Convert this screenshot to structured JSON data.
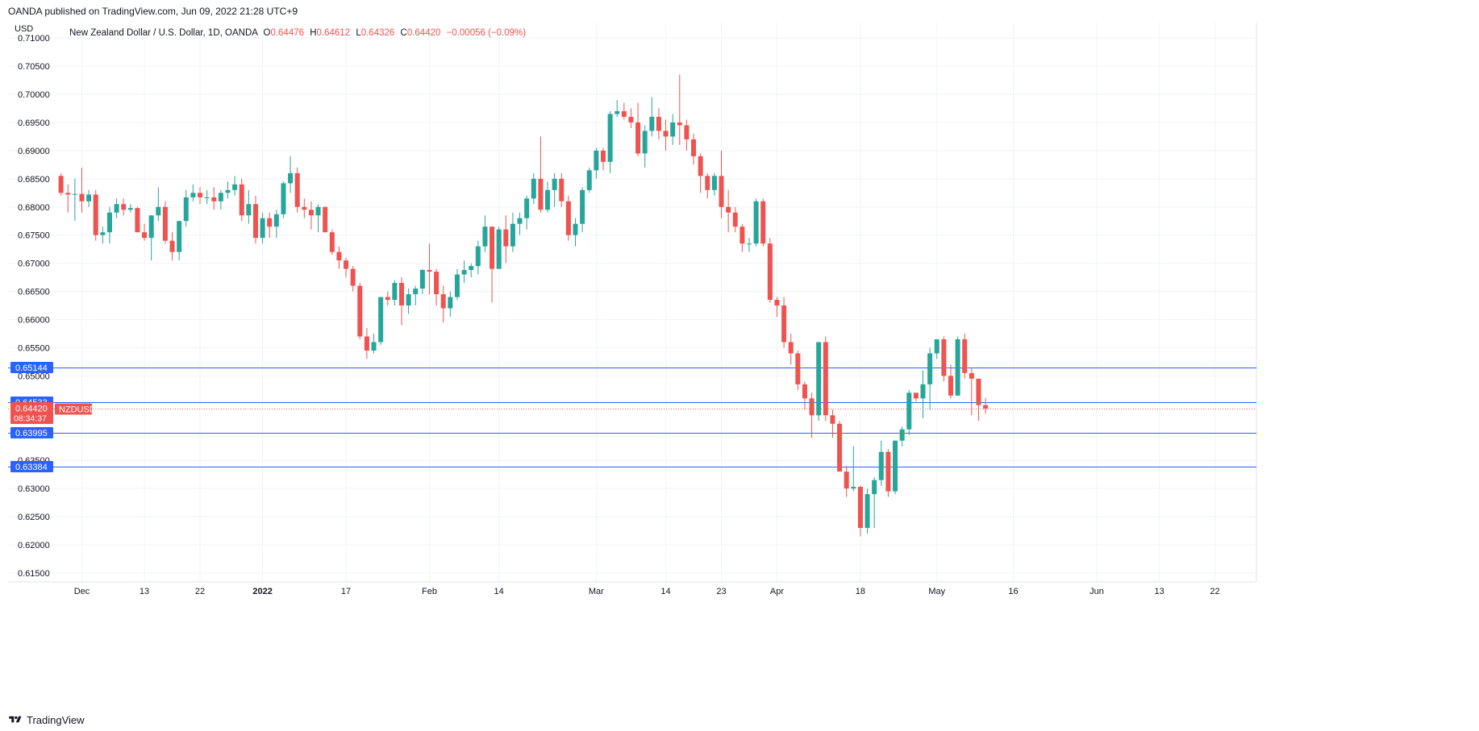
{
  "header": {
    "published_line": "OANDA published on TradingView.com, Jun 09, 2022 21:28 UTC+9"
  },
  "legend": {
    "symbol": "New Zealand Dollar / U.S. Dollar, 1D, OANDA",
    "open_label": "O",
    "open": "0.64476",
    "high_label": "H",
    "high": "0.64612",
    "low_label": "L",
    "low": "0.64326",
    "close_label": "C",
    "close": "0.64420",
    "change": "−0.00056 (−0.09%)"
  },
  "footer": {
    "brand": "TradingView"
  },
  "colors": {
    "up": "#26a69a",
    "down": "#ef5350",
    "level_line": "#2962ff",
    "grid": "#f0f3fa",
    "text": "#131722"
  },
  "chart_data": {
    "type": "candlestick",
    "currency_label": "USD",
    "ylim": [
      0.6125,
      0.7125
    ],
    "y_ticks": [
      "0.71000",
      "0.70500",
      "0.70000",
      "0.69500",
      "0.69000",
      "0.68500",
      "0.68000",
      "0.67500",
      "0.67000",
      "0.66500",
      "0.66000",
      "0.65500",
      "0.65000",
      "0.63500",
      "0.63000",
      "0.62500",
      "0.62000",
      "0.61500"
    ],
    "x_ticks": [
      {
        "label": "Dec",
        "index": 3,
        "bold": false
      },
      {
        "label": "13",
        "index": 12,
        "bold": false
      },
      {
        "label": "22",
        "index": 20,
        "bold": false
      },
      {
        "label": "2022",
        "index": 29,
        "bold": true
      },
      {
        "label": "17",
        "index": 41,
        "bold": false
      },
      {
        "label": "Feb",
        "index": 53,
        "bold": false
      },
      {
        "label": "14",
        "index": 63,
        "bold": false
      },
      {
        "label": "Mar",
        "index": 77,
        "bold": false
      },
      {
        "label": "14",
        "index": 87,
        "bold": false
      },
      {
        "label": "23",
        "index": 95,
        "bold": false
      },
      {
        "label": "Apr",
        "index": 103,
        "bold": false
      },
      {
        "label": "18",
        "index": 115,
        "bold": false
      },
      {
        "label": "May",
        "index": 126,
        "bold": false
      },
      {
        "label": "16",
        "index": 137,
        "bold": false
      },
      {
        "label": "Jun",
        "index": 149,
        "bold": false
      },
      {
        "label": "13",
        "index": 158,
        "bold": false
      },
      {
        "label": "22",
        "index": 166,
        "bold": false
      }
    ],
    "horizontal_levels": [
      "0.65144",
      "0.64533",
      "0.63995",
      "0.63384"
    ],
    "last_price": {
      "value": "0.64420",
      "countdown": "08:34:37",
      "symbol_tag": "NZDUSD"
    },
    "candles": [
      [
        0.6855,
        0.686,
        0.682,
        0.6825
      ],
      [
        0.6825,
        0.684,
        0.679,
        0.6822
      ],
      [
        0.6822,
        0.685,
        0.6775,
        0.6823
      ],
      [
        0.6823,
        0.687,
        0.679,
        0.681
      ],
      [
        0.681,
        0.683,
        0.68,
        0.6822
      ],
      [
        0.6822,
        0.683,
        0.674,
        0.675
      ],
      [
        0.675,
        0.6765,
        0.6735,
        0.6755
      ],
      [
        0.6755,
        0.68,
        0.6735,
        0.679
      ],
      [
        0.679,
        0.6815,
        0.678,
        0.6805
      ],
      [
        0.6805,
        0.6815,
        0.6785,
        0.6795
      ],
      [
        0.6795,
        0.6805,
        0.679,
        0.6798
      ],
      [
        0.6798,
        0.68,
        0.6755,
        0.6755
      ],
      [
        0.6755,
        0.677,
        0.674,
        0.6745
      ],
      [
        0.6745,
        0.6785,
        0.6705,
        0.6785
      ],
      [
        0.6785,
        0.6835,
        0.6775,
        0.68
      ],
      [
        0.68,
        0.681,
        0.6735,
        0.674
      ],
      [
        0.674,
        0.6755,
        0.6705,
        0.672
      ],
      [
        0.672,
        0.6775,
        0.6705,
        0.6775
      ],
      [
        0.6775,
        0.683,
        0.6765,
        0.6817
      ],
      [
        0.6817,
        0.684,
        0.681,
        0.6825
      ],
      [
        0.6825,
        0.6835,
        0.6805,
        0.6817
      ],
      [
        0.6817,
        0.683,
        0.6805,
        0.6817
      ],
      [
        0.6817,
        0.6835,
        0.6795,
        0.681
      ],
      [
        0.681,
        0.683,
        0.6795,
        0.6825
      ],
      [
        0.6825,
        0.6845,
        0.6815,
        0.683
      ],
      [
        0.683,
        0.6855,
        0.682,
        0.684
      ],
      [
        0.684,
        0.685,
        0.6775,
        0.6785
      ],
      [
        0.6785,
        0.683,
        0.677,
        0.6805
      ],
      [
        0.6805,
        0.682,
        0.6735,
        0.6745
      ],
      [
        0.6745,
        0.679,
        0.6735,
        0.678
      ],
      [
        0.678,
        0.679,
        0.6745,
        0.6765
      ],
      [
        0.6765,
        0.6795,
        0.6745,
        0.6787
      ],
      [
        0.6787,
        0.6845,
        0.678,
        0.6842
      ],
      [
        0.6842,
        0.689,
        0.6825,
        0.686
      ],
      [
        0.686,
        0.687,
        0.679,
        0.68
      ],
      [
        0.68,
        0.6815,
        0.678,
        0.6795
      ],
      [
        0.6795,
        0.681,
        0.676,
        0.6785
      ],
      [
        0.6785,
        0.6805,
        0.6755,
        0.68
      ],
      [
        0.68,
        0.68,
        0.6755,
        0.6755
      ],
      [
        0.6755,
        0.676,
        0.6715,
        0.672
      ],
      [
        0.672,
        0.673,
        0.669,
        0.6705
      ],
      [
        0.6705,
        0.671,
        0.6675,
        0.669
      ],
      [
        0.669,
        0.6695,
        0.665,
        0.666
      ],
      [
        0.666,
        0.6665,
        0.6565,
        0.657
      ],
      [
        0.657,
        0.6585,
        0.653,
        0.6545
      ],
      [
        0.6545,
        0.6575,
        0.654,
        0.656
      ],
      [
        0.656,
        0.664,
        0.6555,
        0.664
      ],
      [
        0.664,
        0.665,
        0.6625,
        0.6635
      ],
      [
        0.6635,
        0.667,
        0.6625,
        0.6665
      ],
      [
        0.6665,
        0.6675,
        0.659,
        0.6625
      ],
      [
        0.6625,
        0.6655,
        0.661,
        0.6645
      ],
      [
        0.6645,
        0.666,
        0.6625,
        0.6655
      ],
      [
        0.6655,
        0.669,
        0.6645,
        0.6688
      ],
      [
        0.6688,
        0.6735,
        0.6645,
        0.6685
      ],
      [
        0.6685,
        0.669,
        0.6625,
        0.6645
      ],
      [
        0.6645,
        0.666,
        0.6595,
        0.662
      ],
      [
        0.662,
        0.665,
        0.6605,
        0.664
      ],
      [
        0.664,
        0.669,
        0.6635,
        0.668
      ],
      [
        0.668,
        0.6705,
        0.6665,
        0.6688
      ],
      [
        0.6688,
        0.67,
        0.6675,
        0.6695
      ],
      [
        0.6695,
        0.674,
        0.668,
        0.673
      ],
      [
        0.673,
        0.6785,
        0.672,
        0.6765
      ],
      [
        0.6765,
        0.6765,
        0.663,
        0.669
      ],
      [
        0.669,
        0.6765,
        0.669,
        0.676
      ],
      [
        0.676,
        0.6785,
        0.67,
        0.673
      ],
      [
        0.673,
        0.679,
        0.672,
        0.677
      ],
      [
        0.677,
        0.679,
        0.675,
        0.678
      ],
      [
        0.678,
        0.682,
        0.676,
        0.6815
      ],
      [
        0.6815,
        0.686,
        0.6805,
        0.685
      ],
      [
        0.685,
        0.6925,
        0.679,
        0.6795
      ],
      [
        0.6795,
        0.6845,
        0.679,
        0.683
      ],
      [
        0.683,
        0.686,
        0.68,
        0.685
      ],
      [
        0.685,
        0.686,
        0.68,
        0.681
      ],
      [
        0.681,
        0.682,
        0.674,
        0.675
      ],
      [
        0.675,
        0.678,
        0.673,
        0.677
      ],
      [
        0.677,
        0.6835,
        0.6755,
        0.683
      ],
      [
        0.683,
        0.687,
        0.6825,
        0.6865
      ],
      [
        0.6865,
        0.6905,
        0.685,
        0.69
      ],
      [
        0.69,
        0.6905,
        0.6865,
        0.688
      ],
      [
        0.688,
        0.697,
        0.686,
        0.6965
      ],
      [
        0.6965,
        0.699,
        0.696,
        0.697
      ],
      [
        0.697,
        0.6985,
        0.6955,
        0.696
      ],
      [
        0.696,
        0.6975,
        0.694,
        0.695
      ],
      [
        0.695,
        0.6985,
        0.689,
        0.6895
      ],
      [
        0.6895,
        0.6945,
        0.687,
        0.6935
      ],
      [
        0.6935,
        0.6995,
        0.6925,
        0.696
      ],
      [
        0.696,
        0.6975,
        0.692,
        0.6935
      ],
      [
        0.6935,
        0.6955,
        0.69,
        0.6925
      ],
      [
        0.6925,
        0.6965,
        0.691,
        0.695
      ],
      [
        0.695,
        0.7035,
        0.691,
        0.6945
      ],
      [
        0.6945,
        0.6955,
        0.69,
        0.692
      ],
      [
        0.692,
        0.693,
        0.6875,
        0.689
      ],
      [
        0.689,
        0.6895,
        0.6825,
        0.6855
      ],
      [
        0.6855,
        0.686,
        0.6815,
        0.683
      ],
      [
        0.683,
        0.686,
        0.682,
        0.6855
      ],
      [
        0.6855,
        0.69,
        0.678,
        0.68
      ],
      [
        0.68,
        0.683,
        0.6755,
        0.679
      ],
      [
        0.679,
        0.68,
        0.6755,
        0.6765
      ],
      [
        0.6765,
        0.677,
        0.672,
        0.6735
      ],
      [
        0.6735,
        0.6745,
        0.672,
        0.6735
      ],
      [
        0.6735,
        0.6815,
        0.673,
        0.681
      ],
      [
        0.681,
        0.6815,
        0.673,
        0.6735
      ],
      [
        0.6735,
        0.6745,
        0.663,
        0.6635
      ],
      [
        0.6635,
        0.664,
        0.6605,
        0.6625
      ],
      [
        0.6625,
        0.664,
        0.655,
        0.656
      ],
      [
        0.656,
        0.6575,
        0.652,
        0.654
      ],
      [
        0.654,
        0.6545,
        0.6475,
        0.6485
      ],
      [
        0.6485,
        0.649,
        0.644,
        0.646
      ],
      [
        0.646,
        0.647,
        0.639,
        0.643
      ],
      [
        0.643,
        0.656,
        0.642,
        0.656
      ],
      [
        0.656,
        0.657,
        0.642,
        0.643
      ],
      [
        0.643,
        0.644,
        0.639,
        0.6415
      ],
      [
        0.6415,
        0.642,
        0.633,
        0.633
      ],
      [
        0.633,
        0.634,
        0.6285,
        0.63
      ],
      [
        0.63,
        0.6375,
        0.6295,
        0.6303
      ],
      [
        0.6303,
        0.6305,
        0.6215,
        0.623
      ],
      [
        0.623,
        0.63,
        0.622,
        0.629
      ],
      [
        0.629,
        0.632,
        0.623,
        0.6315
      ],
      [
        0.6315,
        0.6385,
        0.6305,
        0.6365
      ],
      [
        0.6365,
        0.637,
        0.6285,
        0.6295
      ],
      [
        0.6295,
        0.6385,
        0.629,
        0.6385
      ],
      [
        0.6385,
        0.641,
        0.6375,
        0.6405
      ],
      [
        0.6405,
        0.6475,
        0.6395,
        0.647
      ],
      [
        0.647,
        0.647,
        0.6455,
        0.646
      ],
      [
        0.646,
        0.651,
        0.6425,
        0.6485
      ],
      [
        0.6485,
        0.655,
        0.644,
        0.654
      ],
      [
        0.654,
        0.6565,
        0.653,
        0.6565
      ],
      [
        0.6565,
        0.657,
        0.649,
        0.65
      ],
      [
        0.65,
        0.652,
        0.646,
        0.6465
      ],
      [
        0.6465,
        0.657,
        0.6465,
        0.6565
      ],
      [
        0.6565,
        0.6575,
        0.6495,
        0.6505
      ],
      [
        0.6505,
        0.6515,
        0.643,
        0.6495
      ],
      [
        0.6495,
        0.6495,
        0.642,
        0.6448
      ],
      [
        0.6448,
        0.6461,
        0.6433,
        0.6442
      ]
    ],
    "x_offset": 1
  }
}
